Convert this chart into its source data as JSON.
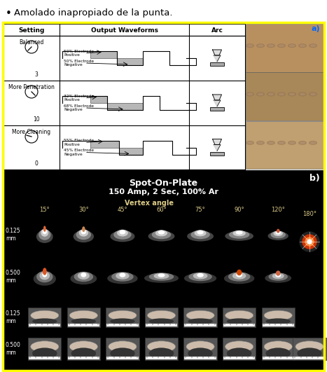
{
  "title_text": "Amolado inapropiado de la punta.",
  "border_color": "#ffff00",
  "label_a": "a)",
  "label_b": "b)",
  "label_a_color": "#0066ff",
  "label_b_color": "#ffffff",
  "spot_title1": "Spot-On-Plate",
  "spot_title2": "150 Amp, 2 Sec, 100% Ar",
  "vertex_label": "Vertex angle",
  "angles": [
    "15°",
    "30°",
    "45°",
    "60°",
    "75°",
    "90°",
    "120°"
  ],
  "angle_180": "180°",
  "row_labels": [
    "0.125\nmm",
    "0.500\nmm",
    "0.125\nmm",
    "0.500\nmm"
  ],
  "table_headers": [
    "Setting",
    "Output Waveforms",
    "Arc"
  ],
  "settings": [
    "Balanced",
    "More Penetration",
    "More Cleaning"
  ],
  "setting_nums": [
    "3",
    "10",
    "0"
  ],
  "wf1_labels": [
    "50% Electrode\nPositive",
    "32% Electrode\nPositive",
    "55% Electrode\nPositive"
  ],
  "wf2_labels": [
    "50% Electrode\nNegative",
    "68% Electrode\nNegative",
    "45% Electrode\nNegative"
  ],
  "wf_ratios": [
    0.5,
    0.32,
    0.55
  ],
  "dial_angles": [
    135,
    45,
    195
  ],
  "figure_width": 4.67,
  "figure_height": 5.31,
  "dpi": 100
}
